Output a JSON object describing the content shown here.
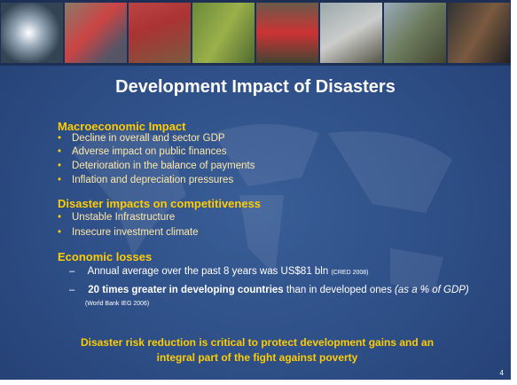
{
  "title": "Development Impact of Disasters",
  "sections": [
    {
      "heading": "Macroeconomic Impact",
      "bullets": [
        "Decline in overall and sector GDP",
        "Adverse impact on public finances",
        "Deterioration in the balance of payments",
        "Inflation and depreciation pressures"
      ]
    },
    {
      "heading": "Disaster impacts on competitiveness",
      "bullets": [
        "Unstable Infrastructure",
        "Insecure investment climate"
      ]
    },
    {
      "heading": "Economic losses",
      "items": [
        {
          "text": "Annual average over the past 8 years was US$81 bln",
          "source": "(CRED 2008)"
        },
        {
          "bold": "20 times greater in developing countries",
          "text": "than in developed ones",
          "italic": "(as a % of GDP)",
          "source": "(World Bank IEG 2006)"
        }
      ]
    }
  ],
  "conclusion": "Disaster risk reduction  is critical to protect development gains and an integral part of the fight against poverty",
  "page_number": "4"
}
